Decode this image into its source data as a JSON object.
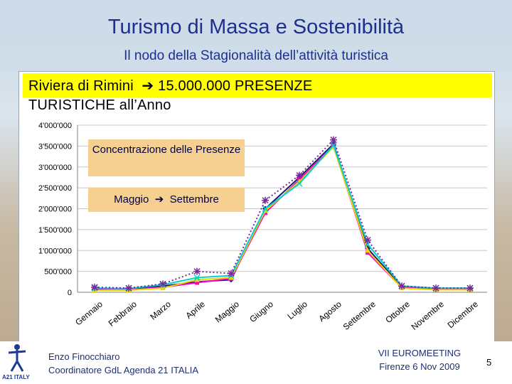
{
  "title": "Turismo di Massa e Sostenibilità",
  "subtitle": "Il nodo della Stagionalità dell’attività turistica",
  "headline": {
    "prefix": "Riviera di Rimini",
    "arrow": "➔",
    "rest_line1": "15.000.000 PRESENZE",
    "line2": "TURISTICHE  all’Anno"
  },
  "callouts": {
    "concentration": "Concentrazione delle Presenze",
    "period_start": "Maggio",
    "arrow": "➔",
    "period_end": "Settembre"
  },
  "footer": {
    "author": "Enzo Finocchiaro",
    "role": "Coordinatore GdL Agenda 21 ITALIA",
    "event": "VII EUROMEETING",
    "place_date": "Firenze 6 Nov 2009",
    "page": "5",
    "logo_text": "A21 ITALY"
  },
  "chart_data": {
    "type": "line",
    "categories": [
      "Gennaio",
      "Febbraio",
      "Marzo",
      "Aprile",
      "Maggio",
      "Giugno",
      "Luglio",
      "Agosto",
      "Settembre",
      "Ottobre",
      "Novembre",
      "Dicembre"
    ],
    "ylim": [
      0,
      4000000
    ],
    "yticks": [
      0,
      500000,
      1000000,
      1500000,
      2000000,
      2500000,
      3000000,
      3500000,
      4000000
    ],
    "ytick_labels": [
      "0",
      "500'000",
      "1'000'000",
      "1'500'000",
      "2'000'000",
      "2'500'000",
      "3'000'000",
      "3'500'000",
      "4'000'000"
    ],
    "grid": true,
    "series": [
      {
        "color": "#1a1a70",
        "style": "solid",
        "marker": "diamond",
        "values": [
          80000,
          70000,
          150000,
          250000,
          300000,
          2000000,
          2750000,
          3550000,
          1050000,
          130000,
          80000,
          80000
        ]
      },
      {
        "color": "#ff00cc",
        "style": "solid",
        "marker": "square",
        "values": [
          60000,
          60000,
          120000,
          230000,
          330000,
          1900000,
          2700000,
          3500000,
          950000,
          110000,
          70000,
          70000
        ]
      },
      {
        "color": "#e6d800",
        "style": "solid",
        "marker": "triangle",
        "values": [
          50000,
          50000,
          100000,
          300000,
          350000,
          1950000,
          2650000,
          3480000,
          1000000,
          100000,
          60000,
          60000
        ]
      },
      {
        "color": "#00d0d0",
        "style": "solid",
        "marker": "x",
        "values": [
          100000,
          90000,
          180000,
          350000,
          400000,
          2000000,
          2600000,
          3520000,
          1150000,
          150000,
          100000,
          100000
        ]
      },
      {
        "color": "#7a2a9a",
        "style": "dotted",
        "marker": "star",
        "values": [
          120000,
          100000,
          200000,
          500000,
          450000,
          2200000,
          2800000,
          3650000,
          1250000,
          150000,
          100000,
          100000
        ]
      }
    ]
  }
}
